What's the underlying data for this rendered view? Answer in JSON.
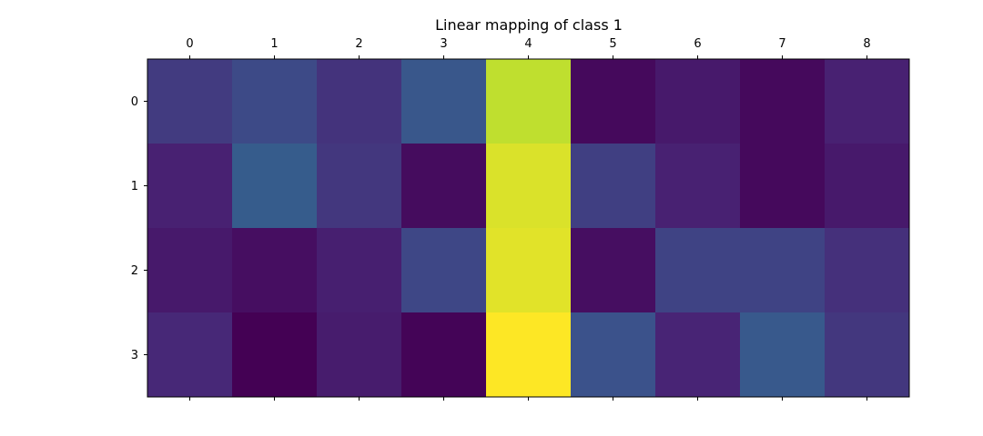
{
  "chart_data": {
    "type": "heatmap",
    "title": "Linear mapping of class 1",
    "xlabel": "",
    "ylabel": "",
    "x_ticks": [
      "0",
      "1",
      "2",
      "3",
      "4",
      "5",
      "6",
      "7",
      "8"
    ],
    "y_ticks": [
      "0",
      "1",
      "2",
      "3"
    ],
    "x_tick_position": "top-and-bottom (labels on top)",
    "colormap": "viridis",
    "grid": false,
    "value_range": [
      0,
      1
    ],
    "values": [
      [
        0.19,
        0.23,
        0.17,
        0.27,
        0.91,
        0.03,
        0.09,
        0.03,
        0.12
      ],
      [
        0.12,
        0.29,
        0.18,
        0.04,
        0.95,
        0.2,
        0.12,
        0.03,
        0.09
      ],
      [
        0.09,
        0.05,
        0.11,
        0.22,
        0.96,
        0.05,
        0.21,
        0.21,
        0.16
      ],
      [
        0.14,
        0.0,
        0.1,
        0.01,
        1.0,
        0.25,
        0.13,
        0.28,
        0.18
      ]
    ]
  }
}
